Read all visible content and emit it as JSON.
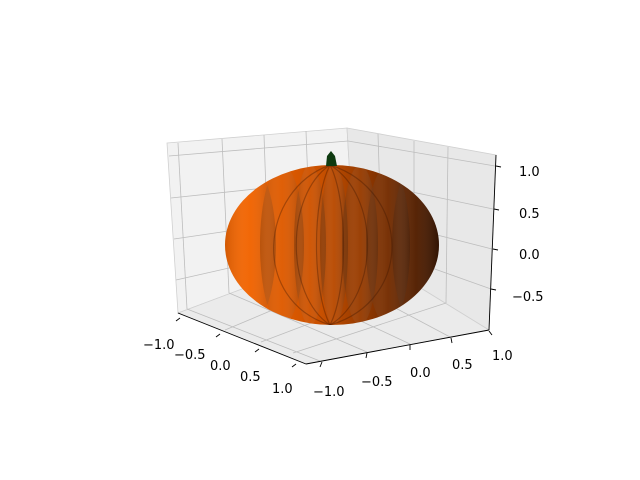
{
  "chart_data": {
    "type": "surface3d",
    "title": "",
    "xlabel": "",
    "ylabel": "",
    "zlabel": "",
    "x_ticks": [
      "−1.0",
      "−0.5",
      "0.0",
      "0.5",
      "1.0"
    ],
    "y_ticks": [
      "−1.0",
      "−0.5",
      "0.0",
      "0.5",
      "1.0"
    ],
    "z_ticks": [
      "−0.5",
      "0.0",
      "0.5",
      "1.0"
    ],
    "xlim": [
      -1.0,
      1.0
    ],
    "ylim": [
      -1.0,
      1.0
    ],
    "zlim": [
      -0.7,
      1.15
    ],
    "grid": true,
    "surface": {
      "shape": "pumpkin",
      "lobes": 12,
      "color": "#ff6a00",
      "stem_color": "#0e3a10"
    }
  }
}
